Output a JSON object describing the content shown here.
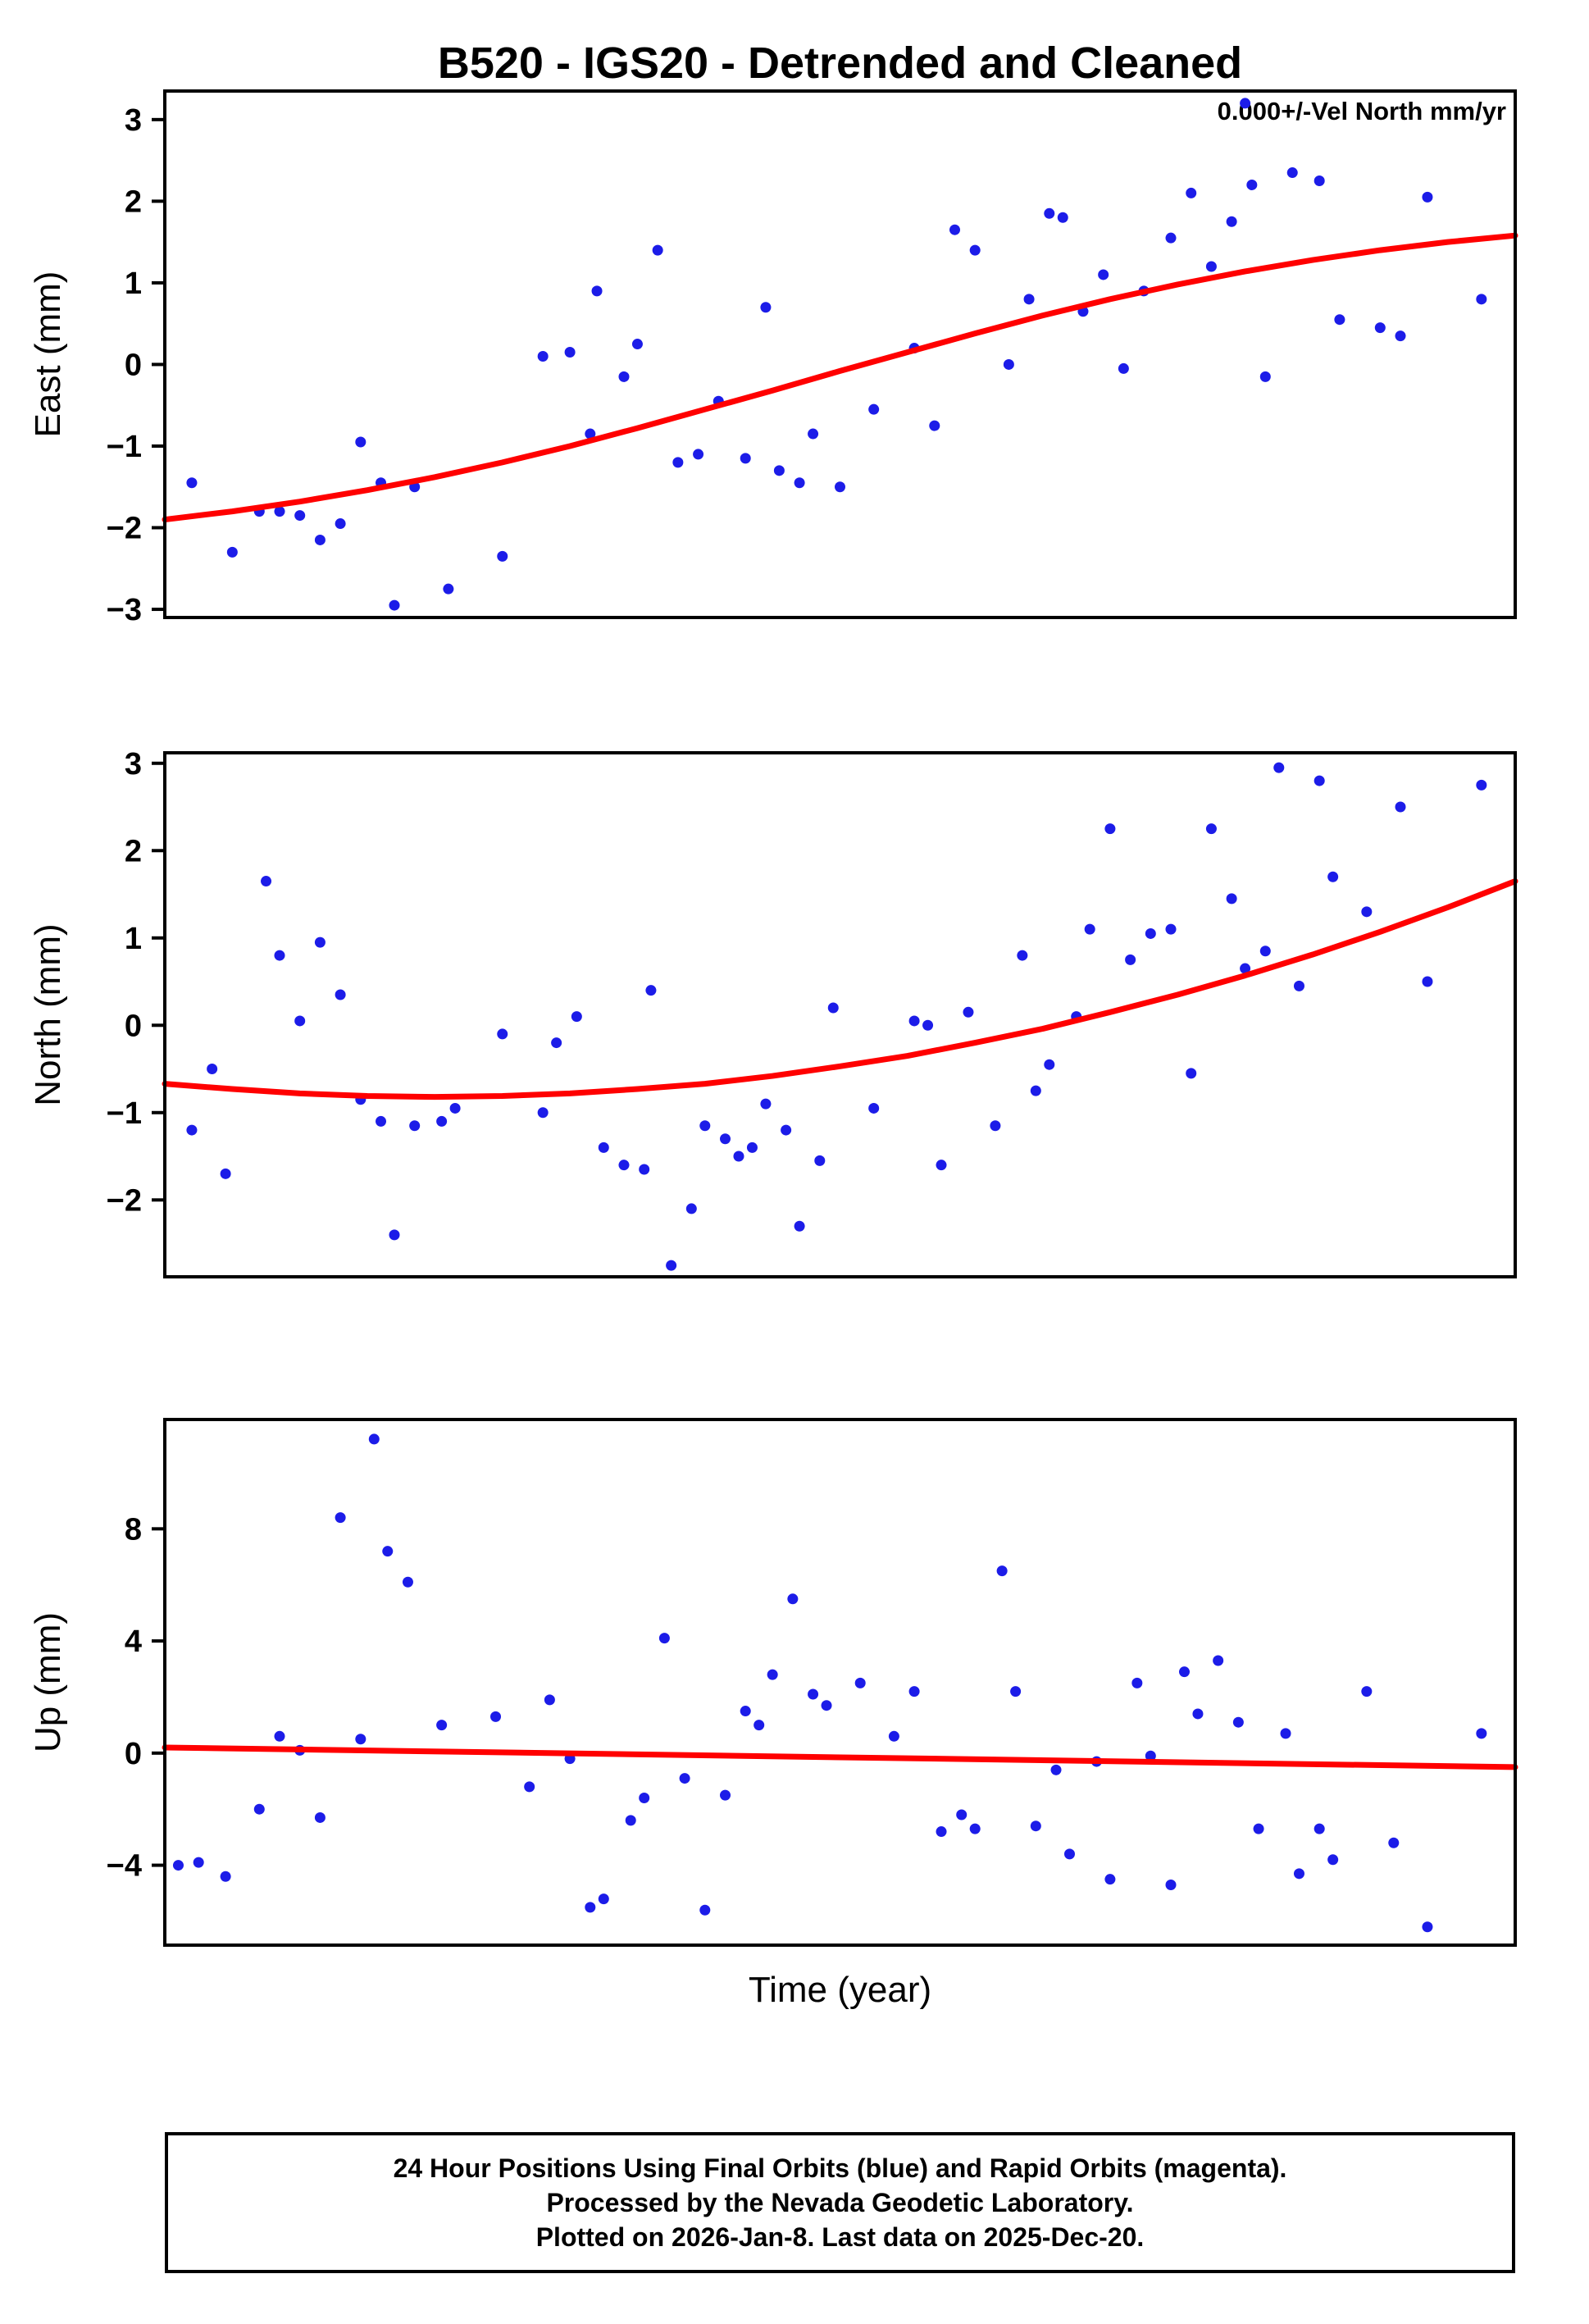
{
  "page": {
    "title": "B520 - IGS20 - Detrended and Cleaned",
    "annotation": "0.000+/-Vel North mm/yr",
    "xlabel": "Time (year)",
    "footer_lines": [
      "24 Hour Positions Using Final Orbits (blue) and Rapid Orbits (magenta).",
      "Processed by the Nevada Geodetic Laboratory.",
      "Plotted on 2026-Jan-8. Last data on 2025-Dec-20."
    ],
    "colors": {
      "points": "#1c1ce8",
      "trend": "#ff0000",
      "axis": "#000000",
      "background": "#ffffff"
    }
  },
  "chart_data": [
    {
      "type": "scatter",
      "ylabel": "East (mm)",
      "ylim": [
        -3.1,
        3.35
      ],
      "yticks": [
        -3,
        -2,
        -1,
        0,
        1,
        2,
        3
      ],
      "xlim": [
        0,
        1
      ],
      "grid": false,
      "points": [
        [
          0.02,
          -1.45
        ],
        [
          0.05,
          -2.3
        ],
        [
          0.07,
          -1.8
        ],
        [
          0.085,
          -1.8
        ],
        [
          0.1,
          -1.85
        ],
        [
          0.115,
          -2.15
        ],
        [
          0.13,
          -1.95
        ],
        [
          0.145,
          -0.95
        ],
        [
          0.16,
          -1.45
        ],
        [
          0.17,
          -2.95
        ],
        [
          0.185,
          -1.5
        ],
        [
          0.21,
          -2.75
        ],
        [
          0.25,
          -2.35
        ],
        [
          0.28,
          0.1
        ],
        [
          0.3,
          0.15
        ],
        [
          0.315,
          -0.85
        ],
        [
          0.32,
          0.9
        ],
        [
          0.34,
          -0.15
        ],
        [
          0.35,
          0.25
        ],
        [
          0.365,
          1.4
        ],
        [
          0.38,
          -1.2
        ],
        [
          0.395,
          -1.1
        ],
        [
          0.41,
          -0.45
        ],
        [
          0.43,
          -1.15
        ],
        [
          0.445,
          0.7
        ],
        [
          0.455,
          -1.3
        ],
        [
          0.47,
          -1.45
        ],
        [
          0.48,
          -0.85
        ],
        [
          0.5,
          -1.5
        ],
        [
          0.525,
          -0.55
        ],
        [
          0.555,
          0.2
        ],
        [
          0.57,
          -0.75
        ],
        [
          0.585,
          1.65
        ],
        [
          0.6,
          1.4
        ],
        [
          0.625,
          0.0
        ],
        [
          0.64,
          0.8
        ],
        [
          0.655,
          1.85
        ],
        [
          0.665,
          1.8
        ],
        [
          0.68,
          0.65
        ],
        [
          0.695,
          1.1
        ],
        [
          0.71,
          -0.05
        ],
        [
          0.725,
          0.9
        ],
        [
          0.745,
          1.55
        ],
        [
          0.76,
          2.1
        ],
        [
          0.775,
          1.2
        ],
        [
          0.79,
          1.75
        ],
        [
          0.8,
          3.2
        ],
        [
          0.805,
          2.2
        ],
        [
          0.815,
          -0.15
        ],
        [
          0.835,
          2.35
        ],
        [
          0.855,
          2.25
        ],
        [
          0.87,
          0.55
        ],
        [
          0.9,
          0.45
        ],
        [
          0.915,
          0.35
        ],
        [
          0.935,
          2.05
        ],
        [
          0.975,
          0.8
        ]
      ],
      "trend": [
        [
          0.0,
          -1.9
        ],
        [
          0.05,
          -1.8
        ],
        [
          0.1,
          -1.68
        ],
        [
          0.15,
          -1.54
        ],
        [
          0.2,
          -1.38
        ],
        [
          0.25,
          -1.2
        ],
        [
          0.3,
          -1.0
        ],
        [
          0.35,
          -0.78
        ],
        [
          0.4,
          -0.55
        ],
        [
          0.45,
          -0.32
        ],
        [
          0.5,
          -0.08
        ],
        [
          0.55,
          0.15
        ],
        [
          0.6,
          0.38
        ],
        [
          0.65,
          0.6
        ],
        [
          0.7,
          0.8
        ],
        [
          0.75,
          0.98
        ],
        [
          0.8,
          1.14
        ],
        [
          0.85,
          1.28
        ],
        [
          0.9,
          1.4
        ],
        [
          0.95,
          1.5
        ],
        [
          1.0,
          1.58
        ]
      ]
    },
    {
      "type": "scatter",
      "ylabel": "North (mm)",
      "ylim": [
        -2.88,
        3.12
      ],
      "yticks": [
        -2,
        -1,
        0,
        1,
        2,
        3
      ],
      "xlim": [
        0,
        1
      ],
      "grid": false,
      "points": [
        [
          0.02,
          -1.2
        ],
        [
          0.035,
          -0.5
        ],
        [
          0.045,
          -1.7
        ],
        [
          0.075,
          1.65
        ],
        [
          0.085,
          0.8
        ],
        [
          0.1,
          0.05
        ],
        [
          0.115,
          0.95
        ],
        [
          0.13,
          0.35
        ],
        [
          0.145,
          -0.85
        ],
        [
          0.16,
          -1.1
        ],
        [
          0.17,
          -2.4
        ],
        [
          0.185,
          -1.15
        ],
        [
          0.205,
          -1.1
        ],
        [
          0.215,
          -0.95
        ],
        [
          0.25,
          -0.1
        ],
        [
          0.28,
          -1.0
        ],
        [
          0.29,
          -0.2
        ],
        [
          0.305,
          0.1
        ],
        [
          0.325,
          -1.4
        ],
        [
          0.34,
          -1.6
        ],
        [
          0.355,
          -1.65
        ],
        [
          0.36,
          0.4
        ],
        [
          0.375,
          -2.75
        ],
        [
          0.39,
          -2.1
        ],
        [
          0.4,
          -1.15
        ],
        [
          0.415,
          -1.3
        ],
        [
          0.425,
          -1.5
        ],
        [
          0.435,
          -1.4
        ],
        [
          0.445,
          -0.9
        ],
        [
          0.46,
          -1.2
        ],
        [
          0.47,
          -2.3
        ],
        [
          0.485,
          -1.55
        ],
        [
          0.495,
          0.2
        ],
        [
          0.525,
          -0.95
        ],
        [
          0.555,
          0.05
        ],
        [
          0.565,
          0.0
        ],
        [
          0.575,
          -1.6
        ],
        [
          0.595,
          0.15
        ],
        [
          0.615,
          -1.15
        ],
        [
          0.635,
          0.8
        ],
        [
          0.645,
          -0.75
        ],
        [
          0.655,
          -0.45
        ],
        [
          0.675,
          0.1
        ],
        [
          0.685,
          1.1
        ],
        [
          0.7,
          2.25
        ],
        [
          0.715,
          0.75
        ],
        [
          0.73,
          1.05
        ],
        [
          0.745,
          1.1
        ],
        [
          0.76,
          -0.55
        ],
        [
          0.775,
          2.25
        ],
        [
          0.79,
          1.45
        ],
        [
          0.8,
          0.65
        ],
        [
          0.815,
          0.85
        ],
        [
          0.825,
          2.95
        ],
        [
          0.84,
          0.45
        ],
        [
          0.855,
          2.8
        ],
        [
          0.865,
          1.7
        ],
        [
          0.89,
          1.3
        ],
        [
          0.915,
          2.5
        ],
        [
          0.935,
          0.5
        ],
        [
          0.975,
          2.75
        ]
      ],
      "trend": [
        [
          0.0,
          -0.67
        ],
        [
          0.05,
          -0.73
        ],
        [
          0.1,
          -0.78
        ],
        [
          0.15,
          -0.81
        ],
        [
          0.2,
          -0.82
        ],
        [
          0.25,
          -0.81
        ],
        [
          0.3,
          -0.78
        ],
        [
          0.35,
          -0.73
        ],
        [
          0.4,
          -0.67
        ],
        [
          0.45,
          -0.58
        ],
        [
          0.5,
          -0.47
        ],
        [
          0.55,
          -0.35
        ],
        [
          0.6,
          -0.2
        ],
        [
          0.65,
          -0.04
        ],
        [
          0.7,
          0.15
        ],
        [
          0.75,
          0.35
        ],
        [
          0.8,
          0.57
        ],
        [
          0.85,
          0.81
        ],
        [
          0.9,
          1.07
        ],
        [
          0.95,
          1.35
        ],
        [
          1.0,
          1.65
        ]
      ]
    },
    {
      "type": "scatter",
      "ylabel": "Up (mm)",
      "ylim": [
        -6.85,
        11.9
      ],
      "yticks": [
        -4,
        0,
        4,
        8
      ],
      "xlim": [
        0,
        1
      ],
      "grid": false,
      "points": [
        [
          0.01,
          -4.0
        ],
        [
          0.025,
          -3.9
        ],
        [
          0.045,
          -4.4
        ],
        [
          0.07,
          -2.0
        ],
        [
          0.085,
          0.6
        ],
        [
          0.1,
          0.1
        ],
        [
          0.115,
          -2.3
        ],
        [
          0.13,
          8.4
        ],
        [
          0.145,
          0.5
        ],
        [
          0.155,
          11.2
        ],
        [
          0.165,
          7.2
        ],
        [
          0.18,
          6.1
        ],
        [
          0.205,
          1.0
        ],
        [
          0.245,
          1.3
        ],
        [
          0.27,
          -1.2
        ],
        [
          0.285,
          1.9
        ],
        [
          0.3,
          -0.2
        ],
        [
          0.315,
          -5.5
        ],
        [
          0.325,
          -5.2
        ],
        [
          0.345,
          -2.4
        ],
        [
          0.355,
          -1.6
        ],
        [
          0.37,
          4.1
        ],
        [
          0.385,
          -0.9
        ],
        [
          0.4,
          -5.6
        ],
        [
          0.415,
          -1.5
        ],
        [
          0.43,
          1.5
        ],
        [
          0.44,
          1.0
        ],
        [
          0.45,
          2.8
        ],
        [
          0.465,
          5.5
        ],
        [
          0.48,
          2.1
        ],
        [
          0.49,
          1.7
        ],
        [
          0.515,
          2.5
        ],
        [
          0.54,
          0.6
        ],
        [
          0.555,
          2.2
        ],
        [
          0.575,
          -2.8
        ],
        [
          0.59,
          -2.2
        ],
        [
          0.6,
          -2.7
        ],
        [
          0.62,
          6.5
        ],
        [
          0.63,
          2.2
        ],
        [
          0.645,
          -2.6
        ],
        [
          0.66,
          -0.6
        ],
        [
          0.67,
          -3.6
        ],
        [
          0.69,
          -0.3
        ],
        [
          0.7,
          -4.5
        ],
        [
          0.72,
          2.5
        ],
        [
          0.73,
          -0.1
        ],
        [
          0.745,
          -4.7
        ],
        [
          0.755,
          2.9
        ],
        [
          0.765,
          1.4
        ],
        [
          0.78,
          3.3
        ],
        [
          0.795,
          1.1
        ],
        [
          0.81,
          -2.7
        ],
        [
          0.83,
          0.7
        ],
        [
          0.84,
          -4.3
        ],
        [
          0.855,
          -2.7
        ],
        [
          0.865,
          -3.8
        ],
        [
          0.89,
          2.2
        ],
        [
          0.91,
          -3.2
        ],
        [
          0.935,
          -6.2
        ],
        [
          0.975,
          0.7
        ]
      ],
      "trend": [
        [
          0.0,
          0.2
        ],
        [
          1.0,
          -0.5
        ]
      ]
    }
  ]
}
